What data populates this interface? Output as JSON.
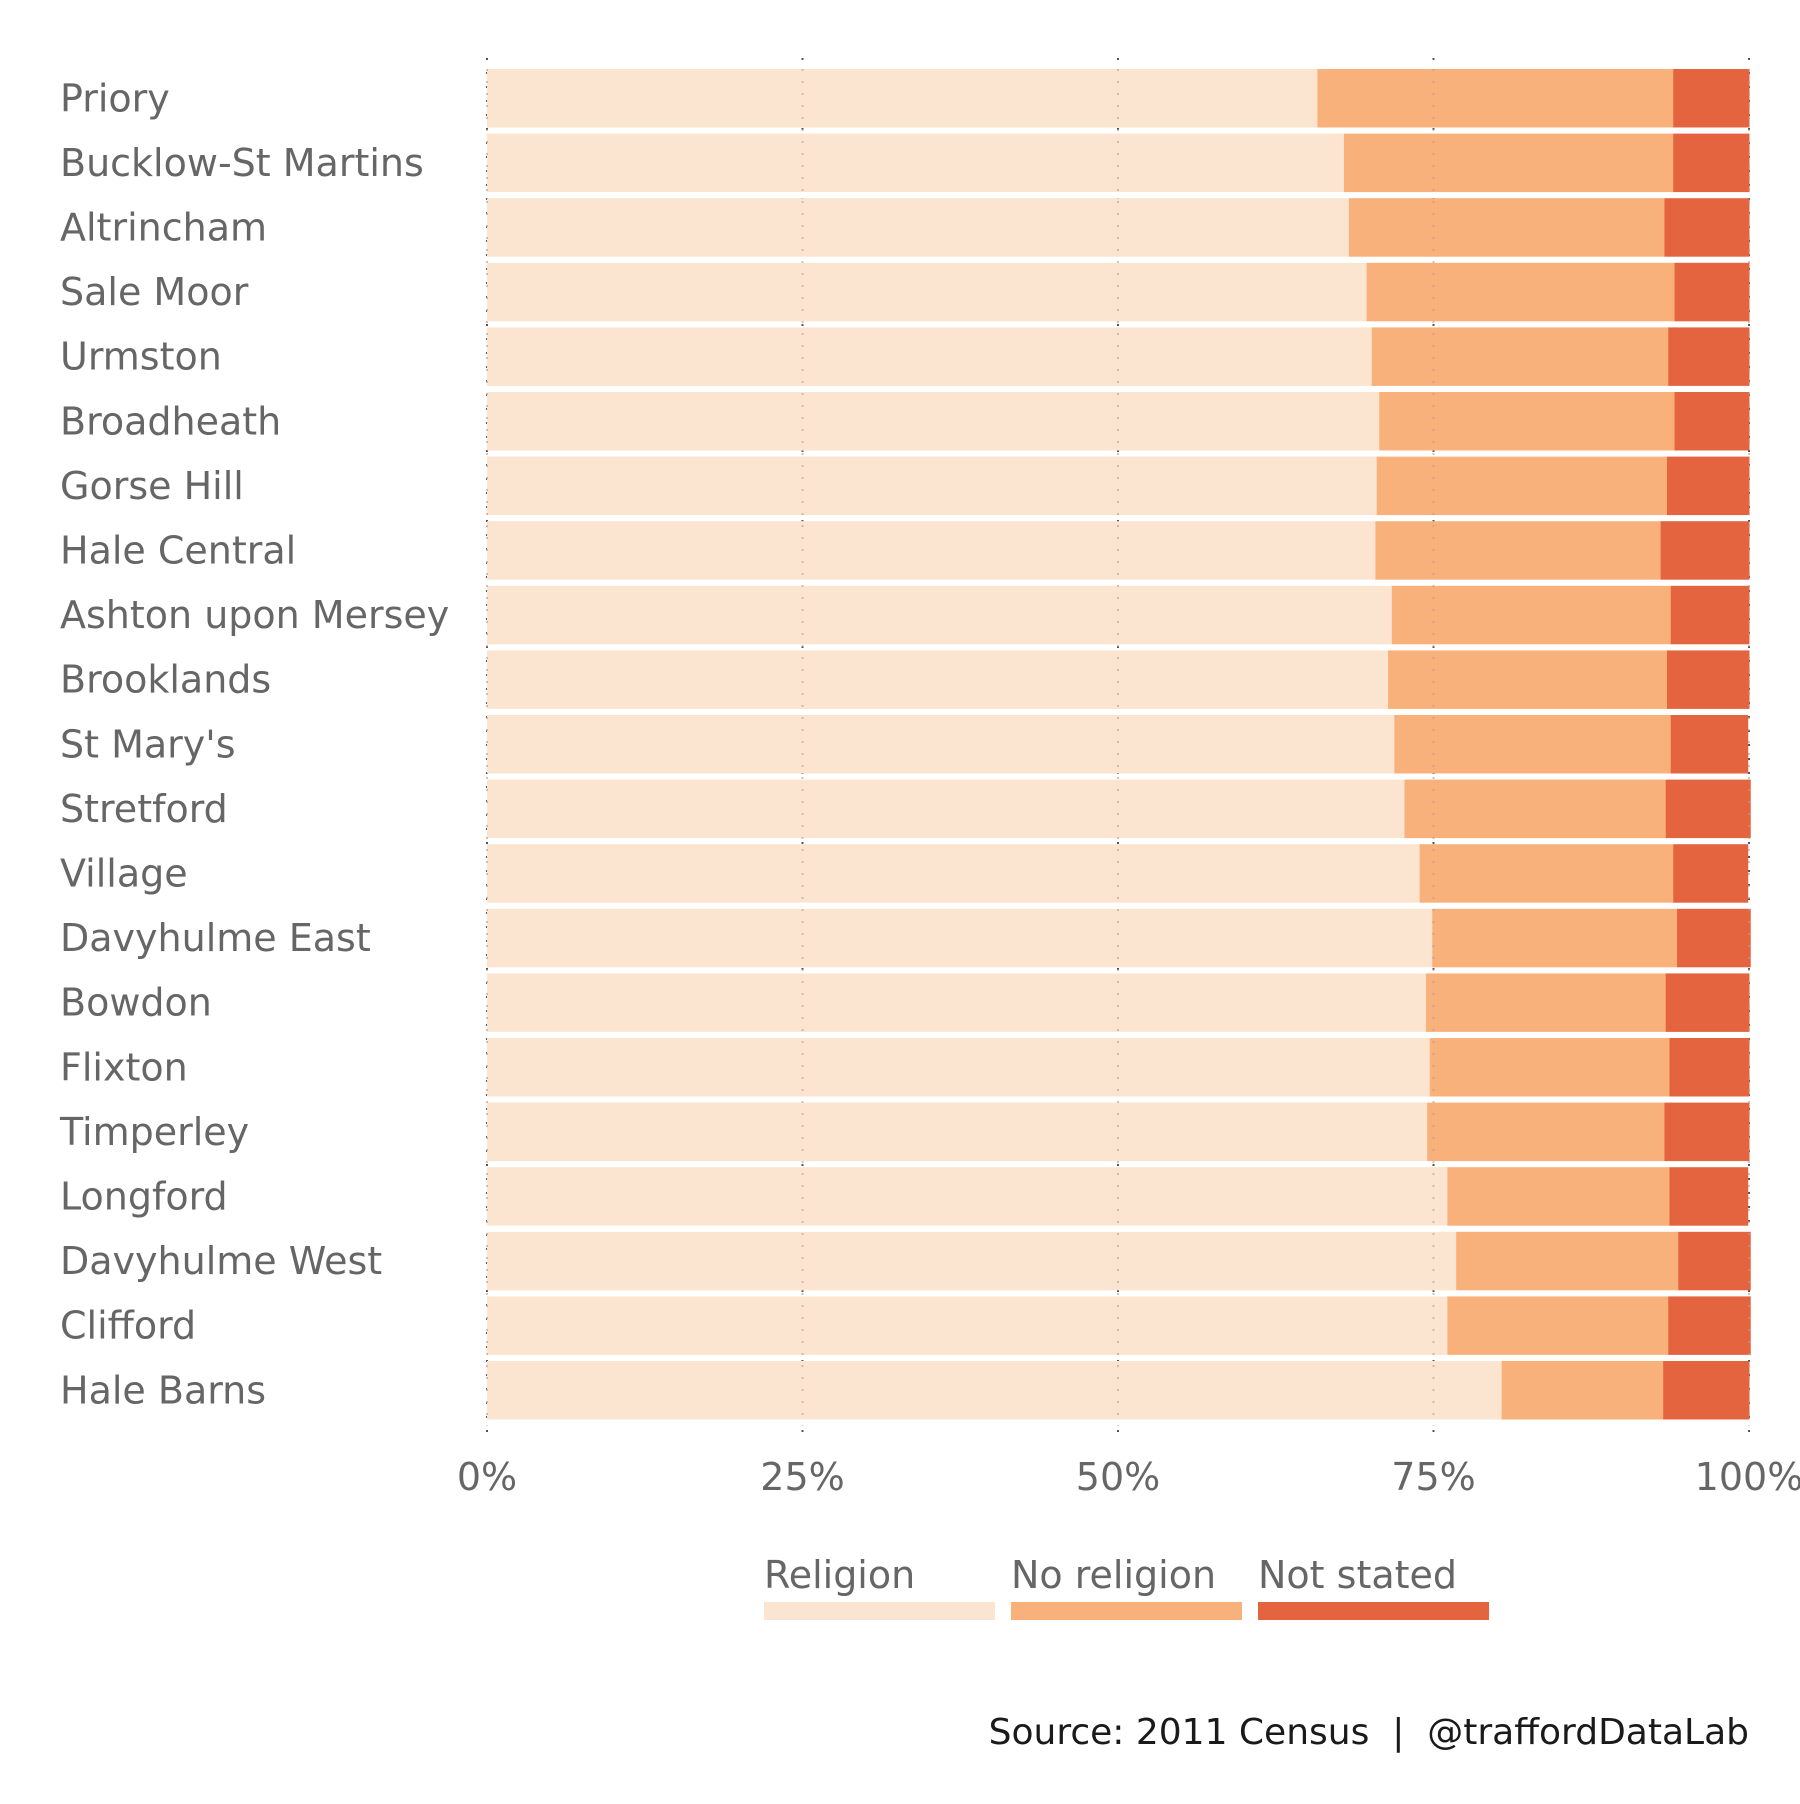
{
  "chart_data": {
    "type": "bar",
    "orientation": "horizontal",
    "stacked": true,
    "normalized": true,
    "title": "",
    "xlabel": "",
    "ylabel": "",
    "xlim": [
      0,
      100
    ],
    "x_ticks": [
      "0%",
      "25%",
      "50%",
      "75%",
      "100%"
    ],
    "x_tick_values": [
      0,
      25,
      50,
      75,
      100
    ],
    "grid": "vertical dotted",
    "legend_position": "bottom",
    "categories": [
      "Priory",
      "Bucklow-St Martins",
      "Altrincham",
      "Sale Moor",
      "Urmston",
      "Broadheath",
      "Gorse Hill",
      "Hale Central",
      "Ashton upon Mersey",
      "Brooklands",
      "St Mary's",
      "Stretford",
      "Village",
      "Davyhulme East",
      "Bowdon",
      "Flixton",
      "Timperley",
      "Longford",
      "Davyhulme West",
      "Clifford",
      "Hale Barns"
    ],
    "series": [
      {
        "name": "Religion",
        "color": "#FCE5D0",
        "values": [
          65.8,
          67.9,
          68.3,
          69.7,
          70.1,
          70.7,
          70.5,
          70.4,
          71.7,
          71.4,
          71.9,
          72.7,
          73.9,
          74.9,
          74.4,
          74.7,
          74.5,
          76.1,
          76.8,
          76.1,
          80.4
        ]
      },
      {
        "name": "No religion",
        "color": "#F9B17B",
        "values": [
          28.2,
          26.1,
          25.0,
          24.4,
          23.5,
          23.4,
          23.0,
          22.6,
          22.1,
          22.1,
          21.9,
          20.7,
          20.1,
          19.4,
          19.0,
          19.0,
          18.8,
          17.6,
          17.6,
          17.5,
          12.8
        ]
      },
      {
        "name": "Not stated",
        "color": "#E56440",
        "values": [
          6.0,
          6.0,
          6.7,
          5.9,
          6.4,
          5.9,
          6.5,
          7.0,
          6.2,
          6.5,
          6.1,
          6.7,
          5.9,
          5.8,
          6.6,
          6.3,
          6.7,
          6.2,
          5.7,
          6.5,
          6.8
        ]
      }
    ],
    "caption": "Source: 2011 Census  |  @traffordDataLab"
  }
}
